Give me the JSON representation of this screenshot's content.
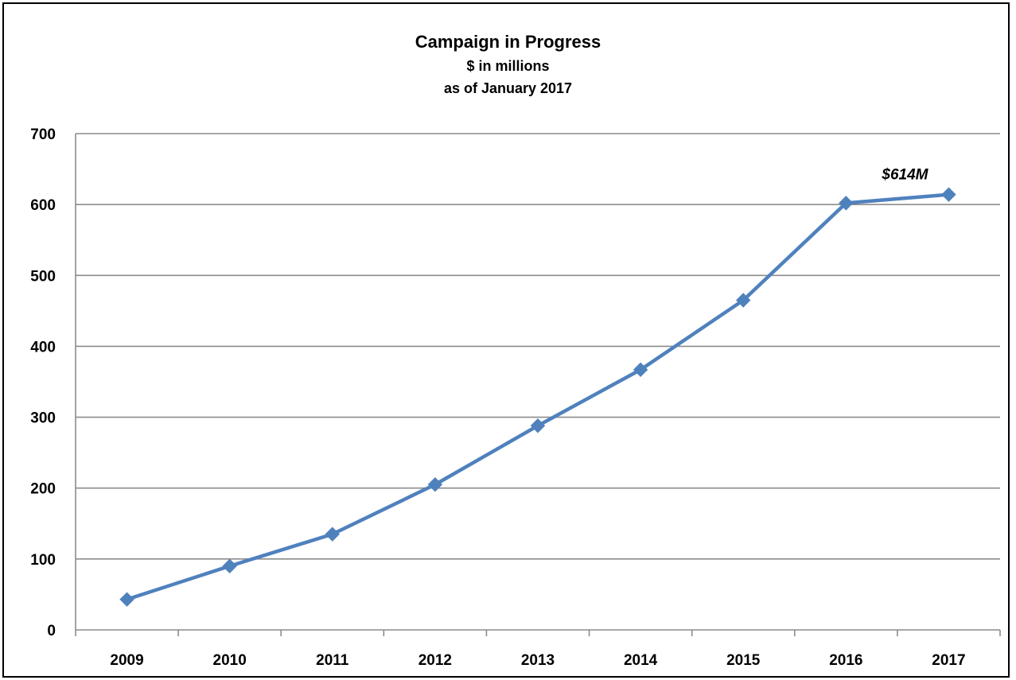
{
  "chart_data": {
    "type": "line",
    "title": "Campaign in Progress",
    "subtitle_lines": [
      "$ in millions",
      "as of January 2017"
    ],
    "xlabel": "",
    "ylabel": "",
    "categories": [
      "2009",
      "2010",
      "2011",
      "2012",
      "2013",
      "2014",
      "2015",
      "2016",
      "2017"
    ],
    "values": [
      43,
      90,
      135,
      205,
      288,
      367,
      465,
      602,
      614
    ],
    "ylim": [
      0,
      700
    ],
    "y_ticks": [
      "0",
      "100",
      "200",
      "300",
      "400",
      "500",
      "600",
      "700"
    ],
    "grid": true,
    "legend": "none",
    "line_color": "#4f81bd",
    "marker": "diamond",
    "annotations": [
      {
        "x": "2017",
        "text": "$614M"
      }
    ]
  }
}
